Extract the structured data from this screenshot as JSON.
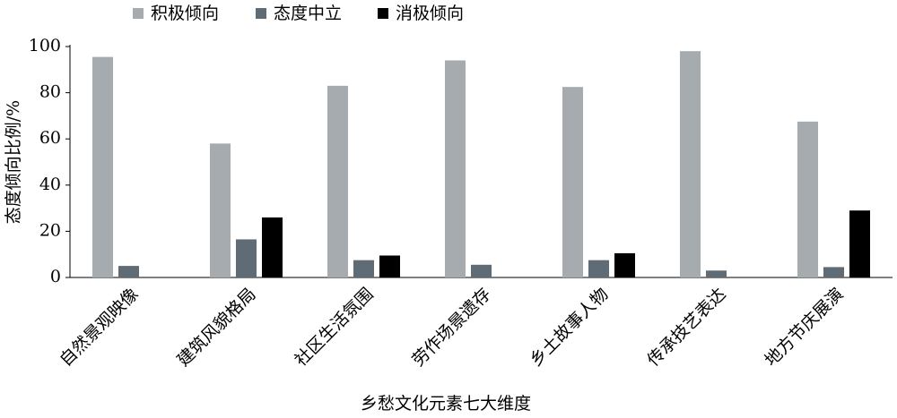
{
  "chart_data": {
    "type": "bar",
    "xlabel": "乡愁文化元素七大维度",
    "ylabel": "态度倾向比例/%",
    "categories": [
      "自然景观映像",
      "建筑风貌格局",
      "社区生活氛围",
      "劳作场景遗存",
      "乡土故事人物",
      "传承技艺表达",
      "地方节庆展演"
    ],
    "series": [
      {
        "name": "积极倾向",
        "color": "#a6abb0",
        "values": [
          95.5,
          58,
          83,
          94,
          82.5,
          98,
          67.5
        ]
      },
      {
        "name": "态度中立",
        "color": "#5f6b75",
        "values": [
          5,
          16.5,
          7.5,
          5.5,
          7.5,
          3,
          4.5
        ]
      },
      {
        "name": "消极倾向",
        "color": "#000000",
        "values": [
          0,
          26,
          9.5,
          0,
          10.5,
          0,
          29
        ]
      }
    ],
    "ylim": [
      0,
      100
    ],
    "yticks": [
      0,
      20,
      40,
      60,
      80,
      100
    ],
    "grid": false
  }
}
